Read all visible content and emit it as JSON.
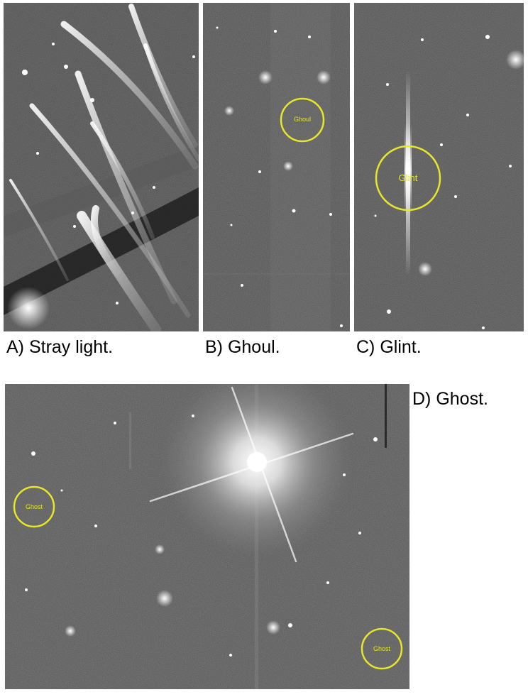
{
  "figure": {
    "panels": [
      {
        "id": "A",
        "caption": "A) Stray light."
      },
      {
        "id": "B",
        "caption": "B) Ghoul.",
        "marker_label": "Ghoul"
      },
      {
        "id": "C",
        "caption": "C) Glint.",
        "marker_label": "Glint"
      },
      {
        "id": "D",
        "caption": "D) Ghost.",
        "marker_labels": [
          "Ghost",
          "Ghost"
        ]
      }
    ],
    "colors": {
      "marker": "#e6e62a",
      "sky_background": "#1a1a1a",
      "artifact_glow": "#f2f2f2"
    }
  }
}
